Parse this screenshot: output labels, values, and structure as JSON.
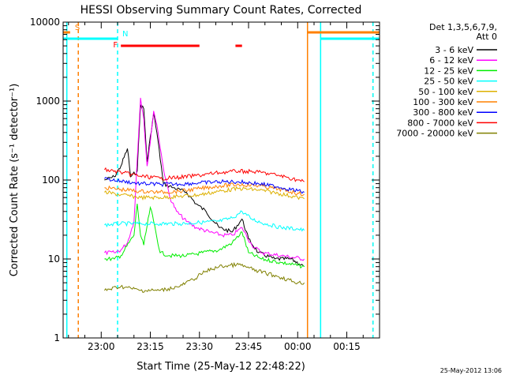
{
  "chart_data": {
    "type": "line",
    "title": "HESSI Observing Summary Count Rates, Corrected",
    "xlabel": "Start Time (25-May-12 22:48:22)",
    "ylabel": "Corrected Count Rate (s⁻¹ detector⁻¹)",
    "y_scale": "log",
    "ylim": [
      1,
      10000
    ],
    "xlim": [
      "22:48:22",
      "00:25:00"
    ],
    "y_ticks": [
      "1",
      "10",
      "100",
      "1000",
      "10000"
    ],
    "x_ticks": [
      "23:00",
      "23:15",
      "23:30",
      "23:45",
      "00:00",
      "00:15"
    ],
    "grid": false,
    "legend_position": "right",
    "legend_title": [
      "Det 1,3,5,6,7,9,",
      "Att 0"
    ],
    "timestamp": "25-May-2012 13:06",
    "series": [
      {
        "name": "3 - 6 keV",
        "color": "#000000",
        "points": [
          [
            "23:01",
            100
          ],
          [
            "23:04",
            110
          ],
          [
            "23:06",
            150
          ],
          [
            "23:08",
            250
          ],
          [
            "23:09",
            110
          ],
          [
            "23:11",
            130
          ],
          [
            "23:12",
            900
          ],
          [
            "23:13",
            800
          ],
          [
            "23:14",
            170
          ],
          [
            "23:16",
            700
          ],
          [
            "23:17",
            400
          ],
          [
            "23:19",
            90
          ],
          [
            "23:22",
            80
          ],
          [
            "23:26",
            70
          ],
          [
            "23:29",
            50
          ],
          [
            "23:32",
            40
          ],
          [
            "23:36",
            25
          ],
          [
            "23:40",
            22
          ],
          [
            "23:43",
            32
          ],
          [
            "23:45",
            18
          ],
          [
            "23:48",
            12
          ],
          [
            "23:53",
            10
          ],
          [
            "23:58",
            10
          ],
          [
            "00:02",
            8
          ]
        ]
      },
      {
        "name": "6 - 12 keV",
        "color": "#ff00ff",
        "points": [
          [
            "23:01",
            12
          ],
          [
            "23:04",
            12
          ],
          [
            "23:06",
            13
          ],
          [
            "23:08",
            16
          ],
          [
            "23:10",
            30
          ],
          [
            "23:12",
            1100
          ],
          [
            "23:13",
            600
          ],
          [
            "23:14",
            150
          ],
          [
            "23:15",
            300
          ],
          [
            "23:16",
            750
          ],
          [
            "23:17",
            500
          ],
          [
            "23:19",
            140
          ],
          [
            "23:21",
            60
          ],
          [
            "23:23",
            40
          ],
          [
            "23:26",
            30
          ],
          [
            "23:29",
            25
          ],
          [
            "23:33",
            22
          ],
          [
            "23:37",
            20
          ],
          [
            "23:40",
            20
          ],
          [
            "23:43",
            25
          ],
          [
            "23:46",
            15
          ],
          [
            "23:49",
            12
          ],
          [
            "23:55",
            11
          ],
          [
            "00:02",
            10
          ]
        ]
      },
      {
        "name": "12 - 25 keV",
        "color": "#00ee00",
        "points": [
          [
            "23:01",
            10
          ],
          [
            "23:04",
            10
          ],
          [
            "23:06",
            11
          ],
          [
            "23:10",
            20
          ],
          [
            "23:11",
            50
          ],
          [
            "23:12",
            20
          ],
          [
            "23:13",
            15
          ],
          [
            "23:15",
            45
          ],
          [
            "23:16",
            30
          ],
          [
            "23:18",
            12
          ],
          [
            "23:21",
            11
          ],
          [
            "23:26",
            11
          ],
          [
            "23:31",
            12
          ],
          [
            "23:36",
            13
          ],
          [
            "23:40",
            16
          ],
          [
            "23:43",
            22
          ],
          [
            "23:45",
            12
          ],
          [
            "23:49",
            10
          ],
          [
            "23:55",
            9
          ],
          [
            "00:02",
            8
          ]
        ]
      },
      {
        "name": "25 - 50 keV",
        "color": "#00ffff",
        "points": [
          [
            "23:01",
            27
          ],
          [
            "23:06",
            28
          ],
          [
            "23:12",
            28
          ],
          [
            "23:18",
            28
          ],
          [
            "23:24",
            28
          ],
          [
            "23:30",
            29
          ],
          [
            "23:36",
            30
          ],
          [
            "23:40",
            33
          ],
          [
            "23:43",
            40
          ],
          [
            "23:46",
            32
          ],
          [
            "23:50",
            28
          ],
          [
            "23:55",
            25
          ],
          [
            "00:00",
            24
          ],
          [
            "00:02",
            23
          ]
        ]
      },
      {
        "name": "50 - 100 keV",
        "color": "#ddb000",
        "points": [
          [
            "23:01",
            70
          ],
          [
            "23:06",
            65
          ],
          [
            "23:12",
            60
          ],
          [
            "23:18",
            60
          ],
          [
            "23:24",
            62
          ],
          [
            "23:30",
            65
          ],
          [
            "23:36",
            72
          ],
          [
            "23:42",
            78
          ],
          [
            "23:48",
            75
          ],
          [
            "23:54",
            68
          ],
          [
            "00:00",
            60
          ],
          [
            "00:02",
            58
          ]
        ]
      },
      {
        "name": "100 - 300 keV",
        "color": "#ff8000",
        "points": [
          [
            "23:01",
            80
          ],
          [
            "23:06",
            76
          ],
          [
            "23:12",
            72
          ],
          [
            "23:18",
            70
          ],
          [
            "23:24",
            72
          ],
          [
            "23:30",
            78
          ],
          [
            "23:36",
            84
          ],
          [
            "23:42",
            88
          ],
          [
            "23:48",
            85
          ],
          [
            "23:54",
            77
          ],
          [
            "00:00",
            68
          ],
          [
            "00:02",
            66
          ]
        ]
      },
      {
        "name": "300 - 800 keV",
        "color": "#0000ff",
        "points": [
          [
            "23:01",
            104
          ],
          [
            "23:06",
            97
          ],
          [
            "23:12",
            90
          ],
          [
            "23:18",
            88
          ],
          [
            "23:24",
            89
          ],
          [
            "23:30",
            92
          ],
          [
            "23:36",
            95
          ],
          [
            "23:42",
            95
          ],
          [
            "23:48",
            90
          ],
          [
            "23:54",
            82
          ],
          [
            "00:00",
            73
          ],
          [
            "00:02",
            70
          ]
        ]
      },
      {
        "name": "800 - 7000 keV",
        "color": "#ff0000",
        "points": [
          [
            "23:01",
            135
          ],
          [
            "23:06",
            125
          ],
          [
            "23:12",
            112
          ],
          [
            "23:18",
            105
          ],
          [
            "23:24",
            108
          ],
          [
            "23:30",
            115
          ],
          [
            "23:36",
            124
          ],
          [
            "23:42",
            130
          ],
          [
            "23:48",
            126
          ],
          [
            "23:54",
            115
          ],
          [
            "00:00",
            100
          ],
          [
            "00:02",
            95
          ]
        ]
      },
      {
        "name": "7000 - 20000 keV",
        "color": "#808000",
        "points": [
          [
            "23:01",
            4
          ],
          [
            "23:06",
            4.5
          ],
          [
            "23:12",
            4
          ],
          [
            "23:18",
            4
          ],
          [
            "23:24",
            4.5
          ],
          [
            "23:28",
            5.5
          ],
          [
            "23:32",
            7
          ],
          [
            "23:36",
            8
          ],
          [
            "23:42",
            8.5
          ],
          [
            "23:48",
            7
          ],
          [
            "23:54",
            6
          ],
          [
            "00:00",
            5
          ],
          [
            "00:02",
            5
          ]
        ]
      }
    ],
    "flag_bars": [
      {
        "label": "S",
        "color": "#ff8000",
        "segments": [
          [
            "22:48:22",
            "22:50:30"
          ],
          [
            "00:03",
            "00:25:00"
          ]
        ]
      },
      {
        "label": "N",
        "color": "#00ffff",
        "segments": [
          [
            "22:48:22",
            "23:05"
          ],
          [
            "00:07",
            "00:25:00"
          ]
        ]
      },
      {
        "label": "F",
        "color": "#ff0000",
        "segments": [
          [
            "23:06",
            "23:30"
          ],
          [
            "23:41",
            "23:43"
          ]
        ]
      }
    ],
    "vertical_markers": [
      {
        "time": "22:49:30",
        "color": "#00ffff",
        "style": "solid"
      },
      {
        "time": "22:53",
        "color": "#ff8000",
        "style": "dashed"
      },
      {
        "time": "23:05",
        "color": "#00ffff",
        "style": "dashed"
      },
      {
        "time": "00:03",
        "color": "#ff8000",
        "style": "solid"
      },
      {
        "time": "00:07",
        "color": "#00ffff",
        "style": "solid"
      },
      {
        "time": "00:23",
        "color": "#ff8000",
        "style": "dashed"
      },
      {
        "time": "00:23",
        "color": "#00ffff",
        "style": "dashed"
      }
    ]
  }
}
